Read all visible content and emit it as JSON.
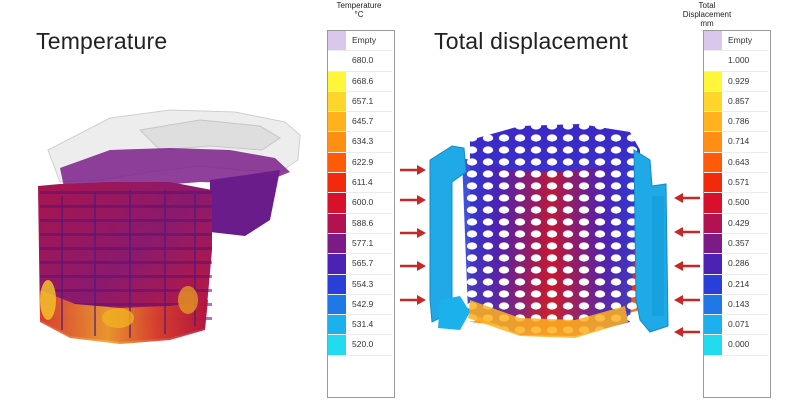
{
  "panels": {
    "temperature": {
      "title": "Temperature",
      "legend_title_line1": "Temperature",
      "legend_title_line2": "°C",
      "legend": [
        {
          "label": "Empty",
          "color": "#d9c8ec"
        },
        {
          "label": "680.0",
          "color": "#ffffff"
        },
        {
          "label": "668.6",
          "color": "#fff53a"
        },
        {
          "label": "657.1",
          "color": "#ffd52b"
        },
        {
          "label": "645.7",
          "color": "#ffb21e"
        },
        {
          "label": "634.3",
          "color": "#ff8e12"
        },
        {
          "label": "622.9",
          "color": "#ff5a08"
        },
        {
          "label": "611.4",
          "color": "#f22a0c"
        },
        {
          "label": "600.0",
          "color": "#d8102c"
        },
        {
          "label": "588.6",
          "color": "#b2124f"
        },
        {
          "label": "577.1",
          "color": "#7d1b86"
        },
        {
          "label": "565.7",
          "color": "#4b22b4"
        },
        {
          "label": "554.3",
          "color": "#2a3fd7"
        },
        {
          "label": "542.9",
          "color": "#1e79e6"
        },
        {
          "label": "531.4",
          "color": "#1bb1ec"
        },
        {
          "label": "520.0",
          "color": "#22dbef"
        }
      ]
    },
    "displacement": {
      "title": "Total displacement",
      "legend_title_line1": "Total",
      "legend_title_line2": "Displacement",
      "legend_title_line3": "mm",
      "legend": [
        {
          "label": "Empty",
          "color": "#d9c8ec"
        },
        {
          "label": "1.000",
          "color": "#ffffff"
        },
        {
          "label": "0.929",
          "color": "#fff53a"
        },
        {
          "label": "0.857",
          "color": "#ffd52b"
        },
        {
          "label": "0.786",
          "color": "#ffb21e"
        },
        {
          "label": "0.714",
          "color": "#ff8e12"
        },
        {
          "label": "0.643",
          "color": "#ff5a08"
        },
        {
          "label": "0.571",
          "color": "#f22a0c"
        },
        {
          "label": "0.500",
          "color": "#d8102c"
        },
        {
          "label": "0.429",
          "color": "#b2124f"
        },
        {
          "label": "0.357",
          "color": "#7d1b86"
        },
        {
          "label": "0.286",
          "color": "#4b22b4"
        },
        {
          "label": "0.214",
          "color": "#2a3fd7"
        },
        {
          "label": "0.143",
          "color": "#1e79e6"
        },
        {
          "label": "0.071",
          "color": "#1bb1ec"
        },
        {
          "label": "0.000",
          "color": "#22dbef"
        }
      ]
    }
  },
  "arrow_color": "#c62828"
}
